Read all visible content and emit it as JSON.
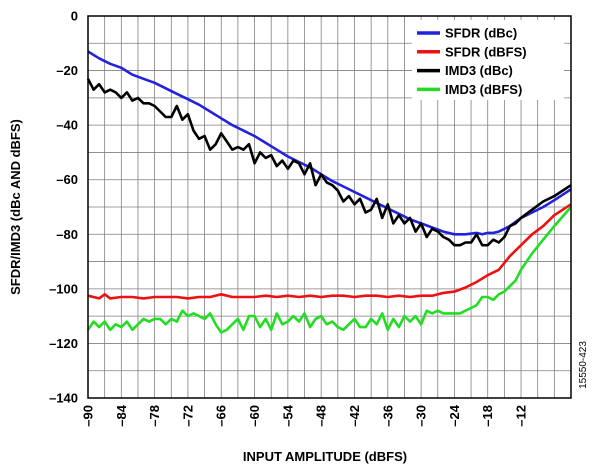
{
  "chart_data": {
    "type": "line",
    "xlabel": "INPUT AMPLITUDE (dBFS)",
    "ylabel": "SFDR/IMD3 (dBc AND dBFS)",
    "xlim": [
      -90,
      -3
    ],
    "ylim": [
      -140,
      0
    ],
    "x_ticks": [
      -90,
      -84,
      -78,
      -72,
      -66,
      -60,
      -54,
      -48,
      -42,
      -36,
      -30,
      -24,
      -18,
      -12
    ],
    "y_ticks": [
      0,
      -20,
      -40,
      -60,
      -80,
      -100,
      -120,
      -140
    ],
    "grid": true,
    "legend_position": "top-right",
    "figure_id": "15550-423",
    "series": [
      {
        "name": "SFDR (dBc)",
        "color": "#2222dd",
        "x": [
          -90,
          -88,
          -86,
          -84,
          -82,
          -80,
          -78,
          -76,
          -74,
          -72,
          -70,
          -68,
          -66,
          -64,
          -62,
          -60,
          -58,
          -56,
          -54,
          -52,
          -50,
          -48,
          -46,
          -44,
          -42,
          -40,
          -38,
          -36,
          -34,
          -32,
          -30,
          -28,
          -26,
          -24,
          -22,
          -20,
          -19,
          -18,
          -17,
          -16,
          -14,
          -12,
          -10,
          -8,
          -6,
          -3
        ],
        "values": [
          -13,
          -15.5,
          -17.5,
          -19,
          -21.5,
          -23,
          -24.5,
          -26.5,
          -28.5,
          -30.5,
          -32.5,
          -35,
          -37.5,
          -40,
          -42,
          -44,
          -46.5,
          -49,
          -51.5,
          -53.5,
          -55.5,
          -58,
          -60.5,
          -62.5,
          -64.5,
          -66.5,
          -68.5,
          -70.5,
          -72.5,
          -74.5,
          -76,
          -77.5,
          -79,
          -80,
          -80,
          -79.5,
          -80,
          -79.5,
          -79.5,
          -79,
          -77,
          -74,
          -72,
          -70,
          -67.5,
          -63.5
        ]
      },
      {
        "name": "SFDR (dBFS)",
        "color": "#ee1111",
        "x": [
          -90,
          -88,
          -87,
          -86,
          -84,
          -82,
          -80,
          -78,
          -76,
          -74,
          -72,
          -70,
          -68,
          -66,
          -64,
          -62,
          -60,
          -58,
          -56,
          -54,
          -52,
          -50,
          -48,
          -46,
          -44,
          -42,
          -40,
          -38,
          -36,
          -34,
          -32,
          -30,
          -28,
          -26,
          -24,
          -22,
          -20,
          -18,
          -16,
          -14,
          -12,
          -10,
          -8,
          -6,
          -3
        ],
        "values": [
          -102.5,
          -103.5,
          -102,
          -103.5,
          -103,
          -103,
          -103.5,
          -103,
          -103,
          -103,
          -103.5,
          -103,
          -103,
          -102,
          -103,
          -103,
          -103,
          -102.5,
          -103,
          -102.5,
          -103,
          -102.5,
          -103,
          -102.5,
          -102.5,
          -103,
          -102.5,
          -102.5,
          -103,
          -102.5,
          -103,
          -102.5,
          -102.5,
          -101.5,
          -101,
          -99.5,
          -97.5,
          -95,
          -93,
          -88,
          -84,
          -80,
          -77,
          -73,
          -69
        ]
      },
      {
        "name": "IMD3 (dBc)",
        "color": "#000000",
        "x": [
          -90,
          -89,
          -88,
          -87,
          -86,
          -85,
          -84,
          -83,
          -82,
          -81,
          -80,
          -79,
          -78,
          -77,
          -76,
          -75,
          -74,
          -73,
          -72,
          -71,
          -70,
          -69,
          -68,
          -67,
          -66,
          -65,
          -64,
          -63,
          -62,
          -61,
          -60,
          -59,
          -58,
          -57,
          -56,
          -55,
          -54,
          -53,
          -52,
          -51,
          -50,
          -49,
          -48,
          -47,
          -46,
          -45,
          -44,
          -43,
          -42,
          -41,
          -40,
          -39,
          -38,
          -37,
          -36,
          -35,
          -34,
          -33,
          -32,
          -31,
          -30,
          -29,
          -28,
          -27,
          -26,
          -25,
          -24,
          -23,
          -22,
          -21,
          -20,
          -19,
          -18,
          -17,
          -16,
          -15,
          -14,
          -13,
          -12,
          -10,
          -8,
          -6,
          -3
        ],
        "values": [
          -23,
          -27,
          -25,
          -28,
          -27,
          -28,
          -30,
          -28,
          -31,
          -30,
          -32,
          -32,
          -33,
          -35,
          -37,
          -37,
          -33,
          -38,
          -36,
          -42,
          -45,
          -44,
          -49,
          -47,
          -43,
          -46,
          -49,
          -48,
          -49,
          -47,
          -54,
          -50,
          -52,
          -51,
          -55,
          -53,
          -56,
          -53,
          -54,
          -58,
          -54,
          -62,
          -58,
          -61,
          -62,
          -64,
          -68,
          -66,
          -69,
          -67,
          -72,
          -71,
          -67,
          -74,
          -69,
          -76,
          -73,
          -76,
          -74,
          -79,
          -76,
          -81,
          -78,
          -79,
          -81,
          -82,
          -84,
          -84,
          -83,
          -83,
          -80,
          -84,
          -84,
          -82,
          -83,
          -81,
          -77,
          -76,
          -74,
          -71,
          -68,
          -66,
          -62
        ]
      },
      {
        "name": "IMD3 (dBFS)",
        "color": "#22dd22",
        "x": [
          -90,
          -89,
          -88,
          -87,
          -86,
          -85,
          -84,
          -83,
          -82,
          -81,
          -80,
          -79,
          -78,
          -77,
          -76,
          -75,
          -74,
          -73,
          -72,
          -71,
          -70,
          -69,
          -68,
          -67,
          -66,
          -65,
          -64,
          -63,
          -62,
          -61,
          -60,
          -59,
          -58,
          -57,
          -56,
          -55,
          -54,
          -53,
          -52,
          -51,
          -50,
          -49,
          -48,
          -47,
          -46,
          -45,
          -44,
          -43,
          -42,
          -41,
          -40,
          -39,
          -38,
          -37,
          -36,
          -35,
          -34,
          -33,
          -32,
          -31,
          -30,
          -29,
          -28,
          -27,
          -26,
          -25,
          -24,
          -23,
          -22,
          -21,
          -20,
          -19,
          -18,
          -17,
          -16,
          -15,
          -14,
          -13,
          -12,
          -10,
          -8,
          -6,
          -3
        ],
        "values": [
          -115,
          -112,
          -114,
          -112,
          -115,
          -113,
          -114,
          -112,
          -115,
          -113,
          -111,
          -112,
          -111,
          -111,
          -113,
          -111,
          -112,
          -108,
          -110,
          -109,
          -110,
          -111,
          -109,
          -113,
          -116,
          -115,
          -113,
          -111,
          -115,
          -110,
          -110,
          -114,
          -111,
          -115,
          -109,
          -113,
          -112,
          -110,
          -112,
          -109,
          -114,
          -111,
          -110,
          -113,
          -112,
          -114,
          -115,
          -113,
          -111,
          -114,
          -114,
          -111,
          -113,
          -109,
          -115,
          -111,
          -114,
          -110,
          -112,
          -110,
          -113,
          -108,
          -109,
          -108,
          -109,
          -109,
          -109,
          -109,
          -108,
          -107,
          -106,
          -103,
          -103,
          -104,
          -102,
          -101,
          -99,
          -97,
          -93,
          -87,
          -82,
          -77,
          -70
        ]
      }
    ]
  }
}
